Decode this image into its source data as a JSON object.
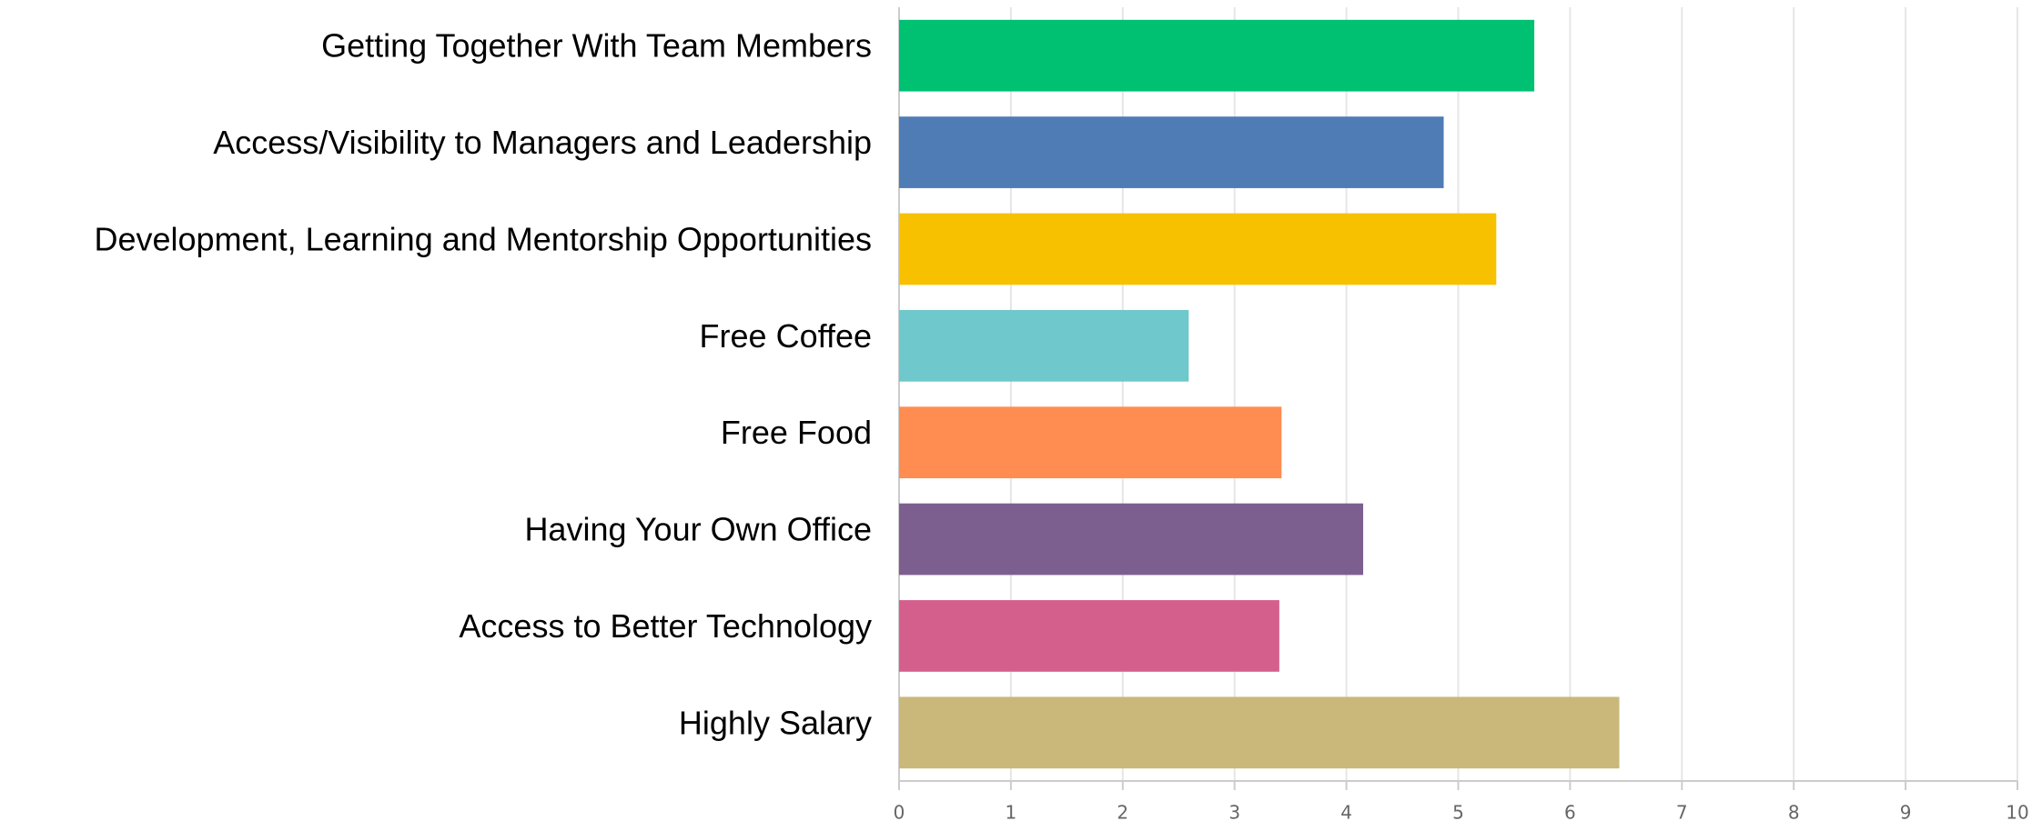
{
  "chart_data": {
    "type": "barh",
    "categories": [
      "Getting Together With Team Members",
      "Access/Visibility to Managers and Leadership",
      "Development, Learning and Mentorship Opportunities",
      "Free Coffee",
      "Free Food",
      "Having Your Own Office",
      "Access to Better Technology",
      "Highly Salary"
    ],
    "values": [
      5.68,
      4.87,
      5.34,
      2.59,
      3.42,
      4.15,
      3.4,
      6.44
    ],
    "colors": [
      "#00c072",
      "#4f7cb5",
      "#f8c100",
      "#6ec8cc",
      "#ff8c50",
      "#7d5f8f",
      "#d45f8d",
      "#c9b87a"
    ],
    "xlim": [
      0,
      10
    ],
    "xticks": [
      0,
      1,
      2,
      3,
      4,
      5,
      6,
      7,
      8,
      9,
      10
    ],
    "grid": true
  }
}
